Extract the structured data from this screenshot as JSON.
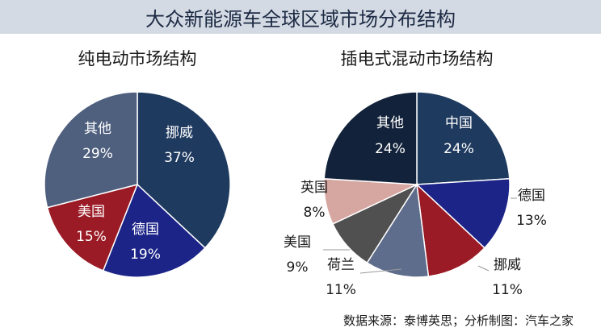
{
  "title": "大众新能源车全球区域市场分布结构",
  "source": "数据来源：泰博英思；分析制图：汽车之家",
  "chart_data": [
    {
      "type": "pie",
      "title": "纯电动市场结构",
      "slices": [
        {
          "label": "挪威",
          "value": 37,
          "value_label": "37%",
          "color": "#1f3a5f"
        },
        {
          "label": "德国",
          "value": 19,
          "value_label": "19%",
          "color": "#1c2488"
        },
        {
          "label": "美国",
          "value": 15,
          "value_label": "15%",
          "color": "#9a1b26"
        },
        {
          "label": "其他",
          "value": 29,
          "value_label": "29%",
          "color": "#4f5f7e"
        }
      ]
    },
    {
      "type": "pie",
      "title": "插电式混动市场结构",
      "slices": [
        {
          "label": "中国",
          "value": 24,
          "value_label": "24%",
          "color": "#1f3a5f"
        },
        {
          "label": "德国",
          "value": 13,
          "value_label": "13%",
          "color": "#1c2488"
        },
        {
          "label": "挪威",
          "value": 11,
          "value_label": "11%",
          "color": "#9a1b26"
        },
        {
          "label": "荷兰",
          "value": 11,
          "value_label": "11%",
          "color": "#5f6d8c"
        },
        {
          "label": "美国",
          "value": 9,
          "value_label": "9%",
          "color": "#505050"
        },
        {
          "label": "英国",
          "value": 8,
          "value_label": "8%",
          "color": "#d6a6a1"
        },
        {
          "label": "其他",
          "value": 24,
          "value_label": "24%",
          "color": "#12223a"
        }
      ]
    }
  ]
}
